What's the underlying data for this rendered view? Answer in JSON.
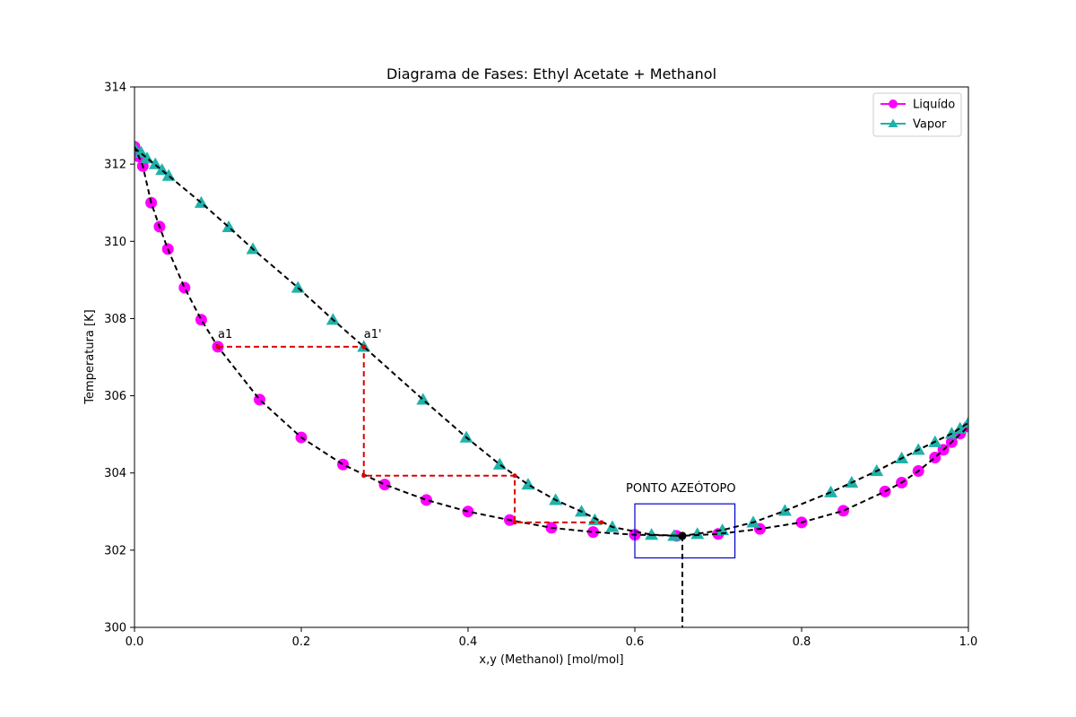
{
  "chart_data": {
    "type": "line",
    "title": "Diagrama de Fases: Ethyl Acetate + Methanol",
    "xlabel": "x,y (Methanol) [mol/mol]",
    "ylabel": "Temperatura [K]",
    "xlim": [
      0,
      1
    ],
    "ylim": [
      300,
      314
    ],
    "xticks": [
      0,
      0.2,
      0.4,
      0.6,
      0.8,
      1.0
    ],
    "xtick_labels": [
      "0.0",
      "0.2",
      "0.4",
      "0.6",
      "0.8",
      "1.0"
    ],
    "yticks": [
      300,
      302,
      304,
      306,
      308,
      310,
      312,
      314
    ],
    "ytick_labels": [
      "300",
      "302",
      "304",
      "306",
      "308",
      "310",
      "312",
      "314"
    ],
    "grid": false,
    "legend_position": "top-right",
    "series": [
      {
        "name": "Liquído",
        "color": "#ff00ff",
        "marker": "circle",
        "points": [
          [
            0.0,
            312.45
          ],
          [
            0.005,
            312.2
          ],
          [
            0.01,
            311.95
          ],
          [
            0.02,
            311.0
          ],
          [
            0.03,
            310.38
          ],
          [
            0.04,
            309.8
          ],
          [
            0.06,
            308.8
          ],
          [
            0.08,
            307.97
          ],
          [
            0.1,
            307.27
          ],
          [
            0.15,
            305.9
          ],
          [
            0.2,
            304.92
          ],
          [
            0.25,
            304.22
          ],
          [
            0.3,
            303.7
          ],
          [
            0.35,
            303.3
          ],
          [
            0.4,
            303.0
          ],
          [
            0.45,
            302.78
          ],
          [
            0.5,
            302.58
          ],
          [
            0.55,
            302.47
          ],
          [
            0.6,
            302.4
          ],
          [
            0.65,
            302.37
          ],
          [
            0.7,
            302.42
          ],
          [
            0.75,
            302.55
          ],
          [
            0.8,
            302.72
          ],
          [
            0.85,
            303.02
          ],
          [
            0.9,
            303.52
          ],
          [
            0.92,
            303.75
          ],
          [
            0.94,
            304.05
          ],
          [
            0.96,
            304.4
          ],
          [
            0.97,
            304.6
          ],
          [
            0.98,
            304.8
          ],
          [
            0.99,
            305.02
          ],
          [
            1.0,
            305.2
          ]
        ]
      },
      {
        "name": "Vapor",
        "color": "#20b2aa",
        "marker": "triangle",
        "points": [
          [
            0.0,
            312.42
          ],
          [
            0.008,
            312.3
          ],
          [
            0.015,
            312.15
          ],
          [
            0.025,
            312.0
          ],
          [
            0.033,
            311.85
          ],
          [
            0.041,
            311.7
          ],
          [
            0.08,
            311.0
          ],
          [
            0.113,
            310.37
          ],
          [
            0.142,
            309.8
          ],
          [
            0.196,
            308.8
          ],
          [
            0.238,
            307.97
          ],
          [
            0.275,
            307.27
          ],
          [
            0.346,
            305.9
          ],
          [
            0.398,
            304.92
          ],
          [
            0.438,
            304.22
          ],
          [
            0.472,
            303.7
          ],
          [
            0.505,
            303.3
          ],
          [
            0.536,
            303.0
          ],
          [
            0.552,
            302.78
          ],
          [
            0.573,
            302.6
          ],
          [
            0.62,
            302.4
          ],
          [
            0.647,
            302.37
          ],
          [
            0.675,
            302.42
          ],
          [
            0.705,
            302.52
          ],
          [
            0.742,
            302.72
          ],
          [
            0.78,
            303.02
          ],
          [
            0.835,
            303.5
          ],
          [
            0.86,
            303.75
          ],
          [
            0.89,
            304.05
          ],
          [
            0.92,
            304.38
          ],
          [
            0.94,
            304.6
          ],
          [
            0.96,
            304.8
          ],
          [
            0.98,
            305.02
          ],
          [
            0.99,
            305.15
          ],
          [
            1.0,
            305.3
          ]
        ]
      }
    ],
    "fit_curves": {
      "color": "#000000",
      "liquid": [
        [
          0.0,
          312.45
        ],
        [
          0.005,
          312.2
        ],
        [
          0.01,
          311.95
        ],
        [
          0.02,
          311.0
        ],
        [
          0.03,
          310.38
        ],
        [
          0.04,
          309.8
        ],
        [
          0.06,
          308.8
        ],
        [
          0.08,
          307.97
        ],
        [
          0.1,
          307.27
        ],
        [
          0.15,
          305.9
        ],
        [
          0.2,
          304.92
        ],
        [
          0.25,
          304.22
        ],
        [
          0.3,
          303.7
        ],
        [
          0.35,
          303.3
        ],
        [
          0.4,
          303.0
        ],
        [
          0.45,
          302.78
        ],
        [
          0.5,
          302.58
        ],
        [
          0.55,
          302.47
        ],
        [
          0.6,
          302.4
        ],
        [
          0.657,
          302.37
        ],
        [
          0.7,
          302.42
        ],
        [
          0.75,
          302.55
        ],
        [
          0.8,
          302.72
        ],
        [
          0.85,
          303.02
        ],
        [
          0.9,
          303.52
        ],
        [
          0.92,
          303.75
        ],
        [
          0.94,
          304.05
        ],
        [
          0.96,
          304.4
        ],
        [
          0.98,
          304.8
        ],
        [
          1.0,
          305.2
        ]
      ],
      "vapor": [
        [
          0.0,
          312.42
        ],
        [
          0.041,
          311.7
        ],
        [
          0.08,
          311.0
        ],
        [
          0.113,
          310.37
        ],
        [
          0.142,
          309.8
        ],
        [
          0.196,
          308.8
        ],
        [
          0.238,
          307.97
        ],
        [
          0.275,
          307.27
        ],
        [
          0.346,
          305.9
        ],
        [
          0.398,
          304.92
        ],
        [
          0.438,
          304.22
        ],
        [
          0.472,
          303.7
        ],
        [
          0.505,
          303.3
        ],
        [
          0.536,
          303.0
        ],
        [
          0.573,
          302.6
        ],
        [
          0.62,
          302.4
        ],
        [
          0.657,
          302.37
        ],
        [
          0.705,
          302.52
        ],
        [
          0.742,
          302.72
        ],
        [
          0.78,
          303.02
        ],
        [
          0.835,
          303.5
        ],
        [
          0.89,
          304.05
        ],
        [
          0.94,
          304.6
        ],
        [
          0.98,
          305.02
        ],
        [
          1.0,
          305.3
        ]
      ]
    },
    "steps": {
      "color": "#dd0000",
      "path": [
        [
          0.1,
          307.27
        ],
        [
          0.275,
          307.27
        ],
        [
          0.275,
          303.93
        ],
        [
          0.456,
          303.93
        ],
        [
          0.456,
          302.72
        ],
        [
          0.56,
          302.72
        ]
      ]
    },
    "azeotrope": {
      "label": "PONTO AZEÓTOPO",
      "x": 0.657,
      "y": 302.37,
      "box": {
        "x0": 0.6,
        "x1": 0.72,
        "y0": 301.8,
        "y1": 303.2
      },
      "box_color": "#0000cc"
    },
    "annotations": [
      {
        "text": "a1",
        "x": 0.1,
        "y": 307.27
      },
      {
        "text": "a1'",
        "x": 0.275,
        "y": 307.27
      }
    ]
  }
}
